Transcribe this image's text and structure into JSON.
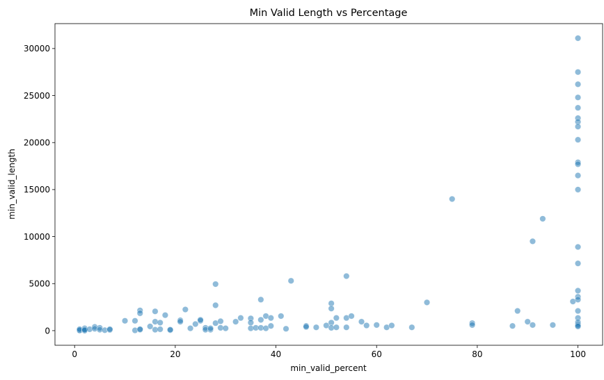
{
  "chart_data": {
    "type": "scatter",
    "title": "Min Valid Length vs Percentage",
    "xlabel": "min_valid_percent",
    "ylabel": "min_valid_length",
    "xlim": [
      -3.9,
      104.9
    ],
    "ylim": [
      -1555,
      32650
    ],
    "xticks": [
      0,
      20,
      40,
      60,
      80,
      100
    ],
    "yticks": [
      0,
      5000,
      10000,
      15000,
      20000,
      25000,
      30000
    ],
    "grid": false,
    "marker_color": "#1f77b4",
    "marker_edge_color": "#ffffff",
    "marker_alpha": 0.5,
    "points": [
      [
        1,
        50
      ],
      [
        1,
        20
      ],
      [
        1,
        150
      ],
      [
        2,
        250
      ],
      [
        2,
        30
      ],
      [
        2,
        10
      ],
      [
        2,
        100
      ],
      [
        3,
        150
      ],
      [
        4,
        400
      ],
      [
        4,
        200
      ],
      [
        5,
        300
      ],
      [
        5,
        100
      ],
      [
        6,
        50
      ],
      [
        7,
        80
      ],
      [
        7,
        150
      ],
      [
        10,
        1050
      ],
      [
        12,
        1050
      ],
      [
        12,
        30
      ],
      [
        13,
        2150
      ],
      [
        13,
        1850
      ],
      [
        13,
        100
      ],
      [
        13,
        150
      ],
      [
        15,
        450
      ],
      [
        16,
        2050
      ],
      [
        16,
        950
      ],
      [
        16,
        100
      ],
      [
        17,
        850
      ],
      [
        17,
        150
      ],
      [
        18,
        1650
      ],
      [
        19,
        50
      ],
      [
        19,
        100
      ],
      [
        21,
        1100
      ],
      [
        21,
        950
      ],
      [
        22,
        2250
      ],
      [
        23,
        250
      ],
      [
        24,
        700
      ],
      [
        25,
        1050
      ],
      [
        25,
        1150
      ],
      [
        26,
        300
      ],
      [
        26,
        100
      ],
      [
        27,
        100
      ],
      [
        27,
        250
      ],
      [
        28,
        4950
      ],
      [
        28,
        2700
      ],
      [
        28,
        800
      ],
      [
        29,
        1000
      ],
      [
        29,
        300
      ],
      [
        30,
        250
      ],
      [
        32,
        950
      ],
      [
        33,
        1350
      ],
      [
        35,
        1300
      ],
      [
        35,
        850
      ],
      [
        35,
        250
      ],
      [
        36,
        300
      ],
      [
        37,
        3300
      ],
      [
        37,
        1150
      ],
      [
        37,
        300
      ],
      [
        38,
        1550
      ],
      [
        38,
        250
      ],
      [
        39,
        1350
      ],
      [
        39,
        500
      ],
      [
        41,
        1550
      ],
      [
        42,
        200
      ],
      [
        43,
        5300
      ],
      [
        46,
        500
      ],
      [
        46,
        400
      ],
      [
        48,
        350
      ],
      [
        50,
        550
      ],
      [
        51,
        2900
      ],
      [
        51,
        2350
      ],
      [
        51,
        850
      ],
      [
        51,
        300
      ],
      [
        52,
        1350
      ],
      [
        52,
        350
      ],
      [
        54,
        5800
      ],
      [
        54,
        1350
      ],
      [
        54,
        350
      ],
      [
        55,
        1550
      ],
      [
        57,
        950
      ],
      [
        58,
        550
      ],
      [
        60,
        600
      ],
      [
        62,
        350
      ],
      [
        63,
        550
      ],
      [
        67,
        350
      ],
      [
        70,
        3000
      ],
      [
        75,
        14000
      ],
      [
        79,
        800
      ],
      [
        79,
        600
      ],
      [
        87,
        500
      ],
      [
        88,
        2100
      ],
      [
        90,
        950
      ],
      [
        91,
        9500
      ],
      [
        91,
        600
      ],
      [
        93,
        11900
      ],
      [
        95,
        600
      ],
      [
        99,
        3100
      ],
      [
        100,
        31100
      ],
      [
        100,
        27500
      ],
      [
        100,
        26200
      ],
      [
        100,
        24800
      ],
      [
        100,
        23700
      ],
      [
        100,
        22600
      ],
      [
        100,
        22200
      ],
      [
        100,
        21700
      ],
      [
        100,
        20300
      ],
      [
        100,
        17900
      ],
      [
        100,
        17700
      ],
      [
        100,
        16500
      ],
      [
        100,
        15000
      ],
      [
        100,
        8900
      ],
      [
        100,
        7150
      ],
      [
        100,
        4250
      ],
      [
        100,
        3600
      ],
      [
        100,
        3300
      ],
      [
        100,
        2100
      ],
      [
        100,
        1350
      ],
      [
        100,
        900
      ],
      [
        100,
        700
      ],
      [
        100,
        550
      ],
      [
        100,
        450
      ]
    ]
  }
}
